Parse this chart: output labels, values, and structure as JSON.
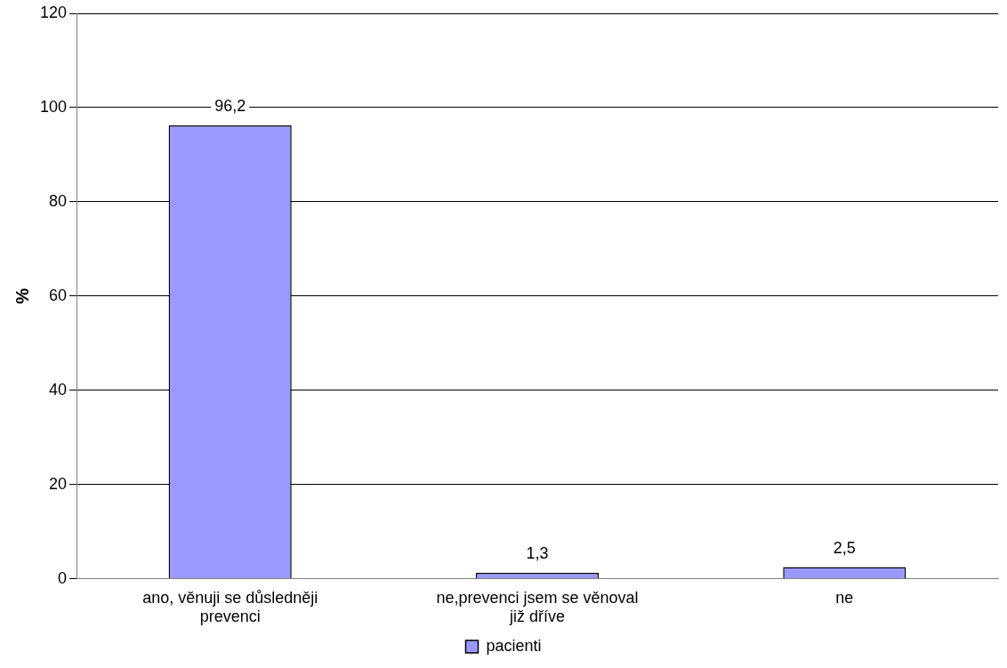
{
  "chart_data": {
    "type": "bar",
    "ylabel": "%",
    "categories": [
      "ano, věnuji se důsledněji prevenci",
      "ne,prevenci jsem se věnoval již dříve",
      "ne"
    ],
    "series": [
      {
        "name": "pacienti",
        "color": "#9999ff",
        "values": [
          96.2,
          1.3,
          2.5
        ]
      }
    ],
    "value_labels": [
      "96,2",
      "1,3",
      "2,5"
    ],
    "ylim": [
      0,
      120
    ],
    "yticks": [
      0,
      20,
      40,
      60,
      80,
      100,
      120
    ],
    "grid": "y",
    "legend": "bottom"
  }
}
